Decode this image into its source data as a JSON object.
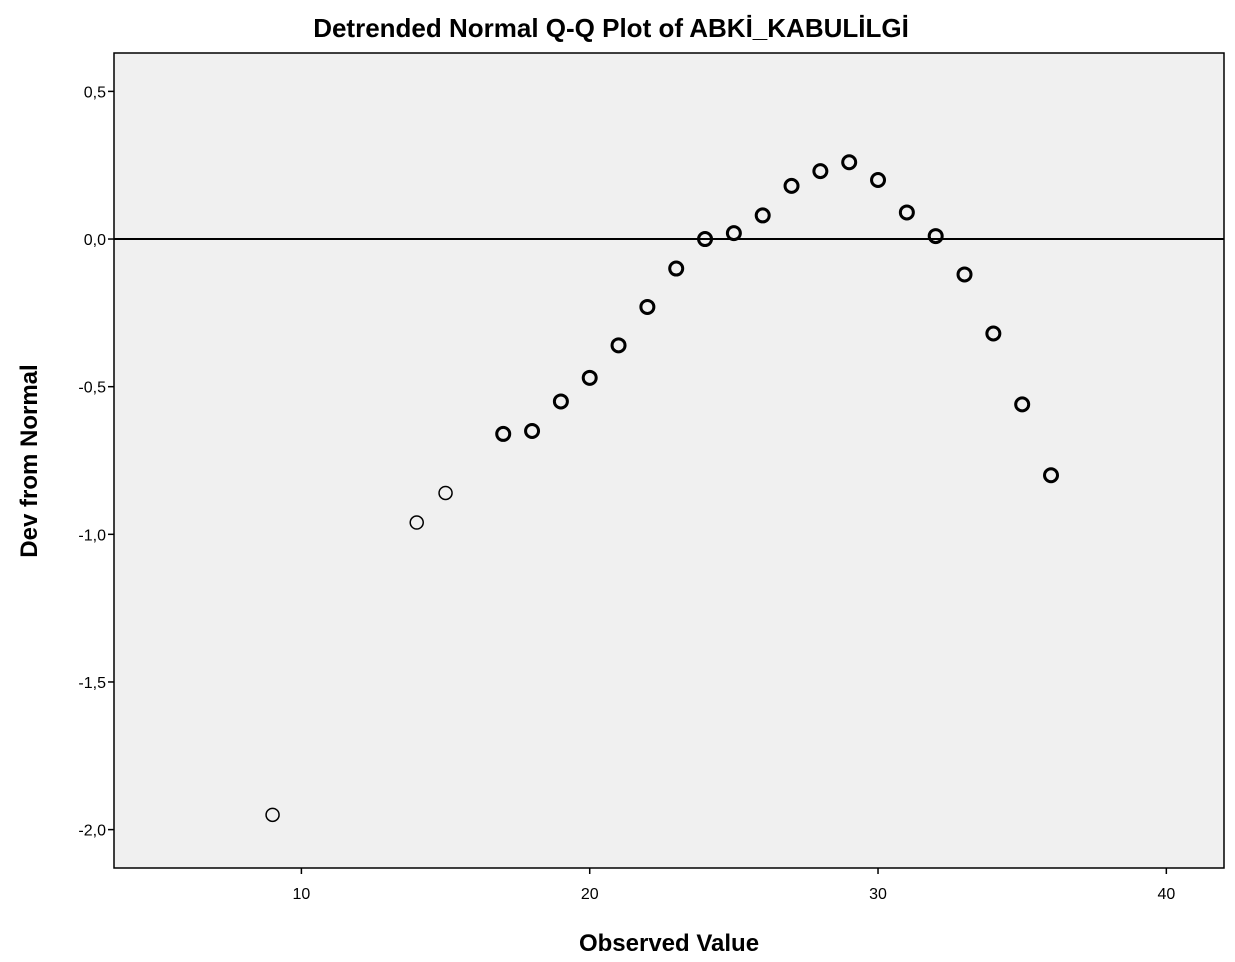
{
  "chart_data": {
    "type": "scatter",
    "title": "Detrended Normal Q-Q Plot of ABKİ_KABULİLGİ",
    "xlabel": "Observed Value",
    "ylabel": "Dev from Normal",
    "xlim": [
      3.5,
      42
    ],
    "ylim": [
      -2.13,
      0.63
    ],
    "x_ticks": [
      10,
      20,
      30,
      40
    ],
    "x_tick_labels": [
      "10",
      "20",
      "30",
      "40"
    ],
    "y_ticks": [
      0.5,
      0.0,
      -0.5,
      -1.0,
      -1.5,
      -2.0
    ],
    "y_tick_labels": [
      "0,5",
      "0,0",
      "-0,5",
      "-1,0",
      "-1,5",
      "-2,0"
    ],
    "reference_line_y": 0,
    "grid": false,
    "plot_background": "#f0f0f0",
    "marker": "open-circle",
    "points": [
      {
        "x": 9,
        "y": -1.95,
        "emphasis": "thin"
      },
      {
        "x": 14,
        "y": -0.96,
        "emphasis": "thin"
      },
      {
        "x": 15,
        "y": -0.86,
        "emphasis": "thin"
      },
      {
        "x": 17,
        "y": -0.66,
        "emphasis": "bold"
      },
      {
        "x": 18,
        "y": -0.65,
        "emphasis": "bold"
      },
      {
        "x": 19,
        "y": -0.55,
        "emphasis": "bold"
      },
      {
        "x": 20,
        "y": -0.47,
        "emphasis": "bold"
      },
      {
        "x": 21,
        "y": -0.36,
        "emphasis": "bold"
      },
      {
        "x": 22,
        "y": -0.23,
        "emphasis": "bold"
      },
      {
        "x": 23,
        "y": -0.1,
        "emphasis": "bold"
      },
      {
        "x": 24,
        "y": 0.0,
        "emphasis": "bold"
      },
      {
        "x": 25,
        "y": 0.02,
        "emphasis": "bold"
      },
      {
        "x": 26,
        "y": 0.08,
        "emphasis": "bold"
      },
      {
        "x": 27,
        "y": 0.18,
        "emphasis": "bold"
      },
      {
        "x": 28,
        "y": 0.23,
        "emphasis": "bold"
      },
      {
        "x": 29,
        "y": 0.26,
        "emphasis": "bold"
      },
      {
        "x": 30,
        "y": 0.2,
        "emphasis": "bold"
      },
      {
        "x": 31,
        "y": 0.09,
        "emphasis": "bold"
      },
      {
        "x": 32,
        "y": 0.01,
        "emphasis": "bold"
      },
      {
        "x": 33,
        "y": -0.12,
        "emphasis": "bold"
      },
      {
        "x": 34,
        "y": -0.32,
        "emphasis": "bold"
      },
      {
        "x": 35,
        "y": -0.56,
        "emphasis": "bold"
      },
      {
        "x": 36,
        "y": -0.8,
        "emphasis": "bold"
      }
    ]
  }
}
